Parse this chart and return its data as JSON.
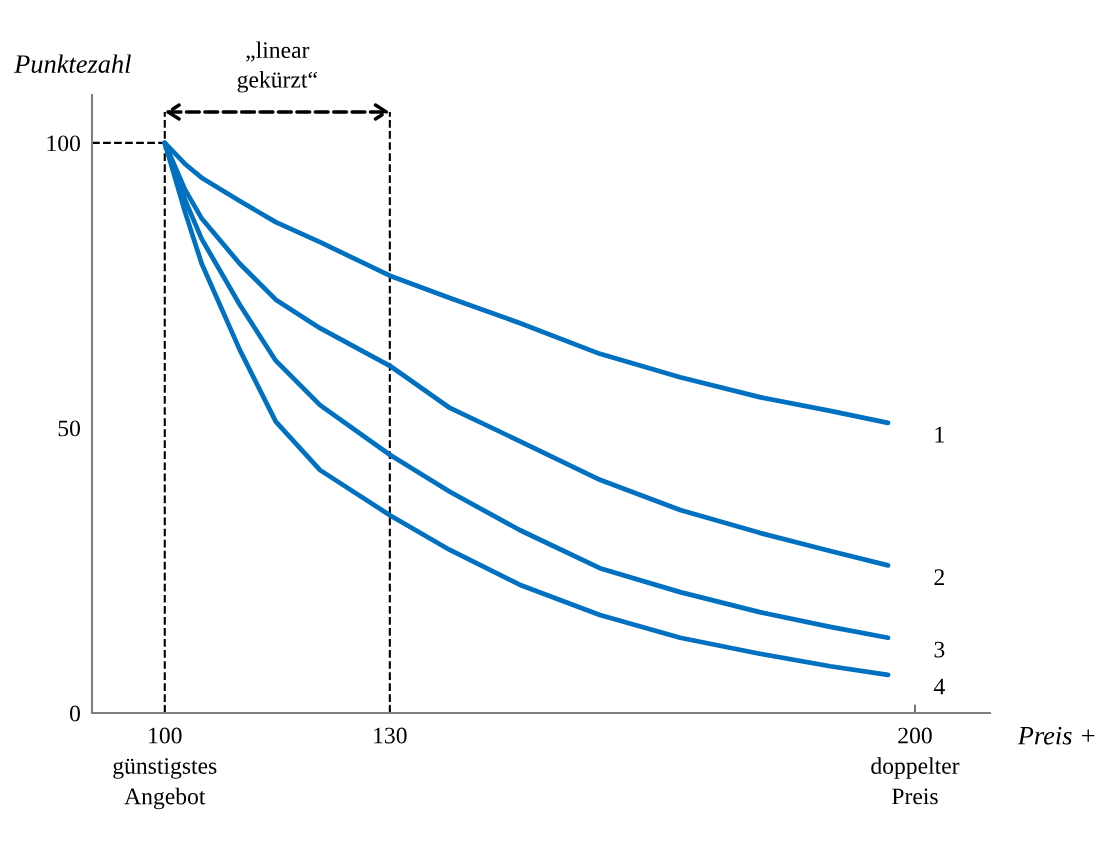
{
  "chart_data": {
    "type": "line",
    "xlabel": "Preis +",
    "ylabel": "Punktezahl",
    "xlim": [
      90.3,
      210
    ],
    "ylim": [
      0,
      108.4
    ],
    "xticks": [
      {
        "value": 100,
        "label": "100\ngünstigstes\nAngebot"
      },
      130,
      {
        "value": 200,
        "label": "200\ndoppelter\nPreis"
      }
    ],
    "yticks": [
      0,
      50,
      100
    ],
    "x": [
      100,
      102.7,
      104.9,
      110,
      114.8,
      120.7,
      130,
      138,
      147.3,
      158,
      168.7,
      179.3,
      188.7,
      196.4
    ],
    "series": [
      {
        "name": "1",
        "color": "#0070c0",
        "values": [
          100,
          96.3,
          93.9,
          89.8,
          86.1,
          82.6,
          76.7,
          72.8,
          68.4,
          63.0,
          58.9,
          55.4,
          53.0,
          50.9
        ]
      },
      {
        "name": "2",
        "color": "#0070c0",
        "values": [
          100,
          91.8,
          86.8,
          78.8,
          72.5,
          67.5,
          60.9,
          53.5,
          47.7,
          40.9,
          35.6,
          31.6,
          28.4,
          25.9
        ]
      },
      {
        "name": "3",
        "color": "#0070c0",
        "values": [
          100,
          90.0,
          83.2,
          71.6,
          61.8,
          54.0,
          45.3,
          38.8,
          32.1,
          25.4,
          21.2,
          17.7,
          15.1,
          13.2
        ]
      },
      {
        "name": "4",
        "color": "#0070c0",
        "values": [
          100,
          87.9,
          78.9,
          63.7,
          51.1,
          42.6,
          34.7,
          28.6,
          22.5,
          17.2,
          13.2,
          10.4,
          8.2,
          6.7
        ]
      }
    ],
    "ref_lines": [
      {
        "axis": "x",
        "value": 100,
        "color": "#000000",
        "line_style": "dashed"
      },
      {
        "axis": "x",
        "value": 130,
        "color": "#000000",
        "line_style": "dashed"
      },
      {
        "axis": "y",
        "value": 100,
        "color": "#000000",
        "line_style": "dashed"
      }
    ],
    "annotations": [
      "„linear\ngekürzt“"
    ],
    "grid": false,
    "legend": false,
    "marker": "none",
    "line_style": "solid"
  }
}
